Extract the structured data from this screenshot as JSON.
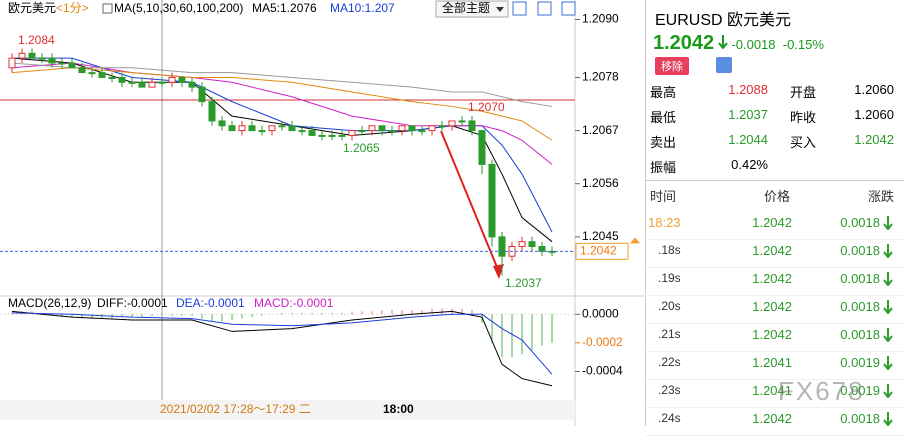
{
  "header": {
    "name": "欧元美元",
    "period": "<1分>",
    "ma_def": "MA(5,10,30,60,100,200)",
    "ma5": "MA5:1.2076",
    "ma10": "MA10:1.207",
    "theme": "全部主题"
  },
  "chart": {
    "ylim": [
      1.2034,
      1.2093
    ],
    "yticks": [
      {
        "value": 1.209,
        "label": "1.2090"
      },
      1.2078,
      1.2067,
      1.2056,
      1.2045
    ],
    "current_price": 1.2042,
    "high_label": "1.2084",
    "peak_label": "1.2070",
    "dip_label": "1.2065",
    "low_label": "1.2037",
    "candles": [
      [
        1.208,
        1.2083,
        1.2079,
        1.2082
      ],
      [
        1.2082,
        1.2084,
        1.2081,
        1.2083
      ],
      [
        1.2083,
        1.2084,
        1.2082,
        1.2082
      ],
      [
        1.2082,
        1.2083,
        1.2081,
        1.2082
      ],
      [
        1.2082,
        1.2083,
        1.208,
        1.2081
      ],
      [
        1.2081,
        1.2082,
        1.208,
        1.2081
      ],
      [
        1.2081,
        1.2082,
        1.208,
        1.208
      ],
      [
        1.208,
        1.2081,
        1.2079,
        1.2079
      ],
      [
        1.2079,
        1.208,
        1.2078,
        1.2079
      ],
      [
        1.2079,
        1.208,
        1.2078,
        1.2078
      ],
      [
        1.2078,
        1.2079,
        1.2077,
        1.2078
      ],
      [
        1.2078,
        1.2079,
        1.2076,
        1.2077
      ],
      [
        1.2077,
        1.2078,
        1.2076,
        1.2077
      ],
      [
        1.2077,
        1.2078,
        1.2076,
        1.2076
      ],
      [
        1.2076,
        1.2078,
        1.2076,
        1.2077
      ],
      [
        1.2077,
        1.2078,
        1.2076,
        1.2077
      ],
      [
        1.2077,
        1.2079,
        1.2076,
        1.2078
      ],
      [
        1.2078,
        1.2078,
        1.2076,
        1.2077
      ],
      [
        1.2077,
        1.2078,
        1.2075,
        1.2076
      ],
      [
        1.2076,
        1.2077,
        1.2072,
        1.2073
      ],
      [
        1.2073,
        1.2074,
        1.2068,
        1.2069
      ],
      [
        1.2069,
        1.207,
        1.2067,
        1.2068
      ],
      [
        1.2068,
        1.2069,
        1.2067,
        1.2067
      ],
      [
        1.2067,
        1.2069,
        1.2066,
        1.2068
      ],
      [
        1.2068,
        1.2069,
        1.2067,
        1.2067
      ],
      [
        1.2067,
        1.2068,
        1.2066,
        1.2067
      ],
      [
        1.2067,
        1.2068,
        1.2066,
        1.2068
      ],
      [
        1.2068,
        1.2069,
        1.2067,
        1.2068
      ],
      [
        1.2068,
        1.2069,
        1.2067,
        1.2067
      ],
      [
        1.2067,
        1.2068,
        1.2066,
        1.2067
      ],
      [
        1.2067,
        1.2068,
        1.2066,
        1.2066
      ],
      [
        1.2066,
        1.2067,
        1.2065,
        1.2066
      ],
      [
        1.2066,
        1.2067,
        1.2065,
        1.2066
      ],
      [
        1.2066,
        1.2067,
        1.2065,
        1.2066
      ],
      [
        1.2066,
        1.2067,
        1.2065,
        1.2067
      ],
      [
        1.2067,
        1.2068,
        1.2066,
        1.2067
      ],
      [
        1.2067,
        1.2068,
        1.2066,
        1.2068
      ],
      [
        1.2068,
        1.2068,
        1.2066,
        1.2067
      ],
      [
        1.2067,
        1.2068,
        1.2066,
        1.2067
      ],
      [
        1.2067,
        1.2068,
        1.2066,
        1.2068
      ],
      [
        1.2068,
        1.2068,
        1.2066,
        1.2067
      ],
      [
        1.2067,
        1.2068,
        1.2066,
        1.2067
      ],
      [
        1.2067,
        1.2068,
        1.2066,
        1.2068
      ],
      [
        1.2068,
        1.2069,
        1.2067,
        1.2068
      ],
      [
        1.2068,
        1.2069,
        1.2067,
        1.2069
      ],
      [
        1.2069,
        1.207,
        1.2068,
        1.2069
      ],
      [
        1.2069,
        1.207,
        1.2066,
        1.2067
      ],
      [
        1.2067,
        1.2067,
        1.2058,
        1.206
      ],
      [
        1.206,
        1.2061,
        1.2043,
        1.2045
      ],
      [
        1.2045,
        1.2046,
        1.2037,
        1.2041
      ],
      [
        1.2041,
        1.2044,
        1.204,
        1.2043
      ],
      [
        1.2043,
        1.2045,
        1.2042,
        1.2044
      ],
      [
        1.2044,
        1.2045,
        1.2042,
        1.2043
      ],
      [
        1.2043,
        1.2044,
        1.2041,
        1.2042
      ],
      [
        1.2042,
        1.2043,
        1.2041,
        1.2042
      ]
    ],
    "ma_index": [
      0,
      6,
      12,
      18,
      22,
      28,
      34,
      40,
      44,
      47,
      49,
      51,
      54
    ],
    "ma_lines": [
      {
        "color": "#000000",
        "values": [
          1.2082,
          1.2081,
          1.2077,
          1.2077,
          1.207,
          1.2068,
          1.2066,
          1.2067,
          1.2068,
          1.2066,
          1.2058,
          1.2049,
          1.2044
        ]
      },
      {
        "color": "#1a3fd6",
        "values": [
          1.2082,
          1.2082,
          1.2078,
          1.2077,
          1.2073,
          1.2068,
          1.2067,
          1.2067,
          1.2068,
          1.2068,
          1.2064,
          1.2058,
          1.2046
        ]
      },
      {
        "color": "#d020c8",
        "values": [
          1.208,
          1.2081,
          1.2079,
          1.2078,
          1.2077,
          1.2074,
          1.207,
          1.2068,
          1.2068,
          1.2068,
          1.2067,
          1.2065,
          1.206
        ]
      },
      {
        "color": "#e08a10",
        "values": [
          1.2079,
          1.208,
          1.2079,
          1.2078,
          1.2078,
          1.2077,
          1.2075,
          1.2073,
          1.2072,
          1.2071,
          1.207,
          1.2069,
          1.2065
        ]
      },
      {
        "color": "#999999",
        "values": [
          1.2081,
          1.208,
          1.208,
          1.2079,
          1.2079,
          1.2078,
          1.2077,
          1.2076,
          1.2075,
          1.2075,
          1.2074,
          1.2073,
          1.2072
        ]
      }
    ]
  },
  "macd": {
    "title": "MACD(26,12,9)",
    "diff": "DIFF:-0.0001",
    "dea": "DEA:-0.0001",
    "macd": "MACD:-0.0001",
    "ylim": [
      -0.0006,
      0.0001
    ],
    "yticks": [
      {
        "value": 0,
        "label": "0.0000"
      },
      -0.0004
    ],
    "current": -0.0002,
    "hist": [
      1e-05,
      2e-05,
      2e-05,
      1e-05,
      -1e-05,
      -2e-05,
      -2e-05,
      -3e-05,
      -3e-05,
      -3e-05,
      -3e-05,
      -2e-05,
      -2e-05,
      -2e-05,
      -1e-05,
      -1e-05,
      -1e-05,
      -1e-05,
      -1e-05,
      -3e-05,
      -5e-05,
      -5e-05,
      -4e-05,
      -3e-05,
      -2e-05,
      -1e-05,
      0,
      1e-05,
      1e-05,
      1e-05,
      1e-05,
      1e-05,
      1e-05,
      1e-05,
      2e-05,
      2e-05,
      2e-05,
      3e-05,
      3e-05,
      3e-05,
      3e-05,
      3e-05,
      4e-05,
      4e-05,
      4e-05,
      4e-05,
      3e-05,
      -6e-05,
      -0.0002,
      -0.0003,
      -0.0003,
      -0.00028,
      -0.00025,
      -0.00022,
      -0.0002
    ],
    "diff_values": [
      2e-05,
      -2e-05,
      -4e-05,
      -4e-05,
      -0.00012,
      -0.0001,
      -4e-05,
      0,
      2e-05,
      -2e-05,
      -0.00035,
      -0.00045,
      -0.0005
    ],
    "dea_values": [
      1e-05,
      0,
      -2e-05,
      -3e-05,
      -7e-05,
      -8e-05,
      -6e-05,
      -2e-05,
      0,
      0,
      -0.0001,
      -0.00018,
      -0.00042
    ]
  },
  "time_axis": {
    "cursor": "2021/02/02 17:28～17:29 二",
    "tick": "18:00"
  },
  "quote": {
    "symbol": "EURUSD",
    "name": "欧元美元",
    "price": "1.2042",
    "change": "-0.0018",
    "pct": "-0.15%",
    "remove": "移除",
    "rows": [
      [
        "最高",
        "1.2088",
        "开盘",
        "1.2060"
      ],
      [
        "最低",
        "1.2037",
        "昨收",
        "1.2060"
      ],
      [
        "卖出",
        "1.2044",
        "买入",
        "1.2042"
      ],
      [
        "振幅",
        "0.42%"
      ]
    ]
  },
  "ticks": {
    "header": [
      "时间",
      "价格",
      "涨跌"
    ],
    "rows": [
      [
        "18:23",
        "1.2042",
        "0.0018"
      ],
      [
        ".18s",
        "1.2042",
        "0.0018"
      ],
      [
        ".19s",
        "1.2042",
        "0.0018"
      ],
      [
        ".20s",
        "1.2042",
        "0.0018"
      ],
      [
        ".21s",
        "1.2042",
        "0.0018"
      ],
      [
        ".22s",
        "1.2041",
        "0.0019"
      ],
      [
        ".23s",
        "1.2041",
        "0.0019"
      ],
      [
        ".24s",
        "1.2042",
        "0.0018"
      ]
    ]
  },
  "watermark": "FX678"
}
